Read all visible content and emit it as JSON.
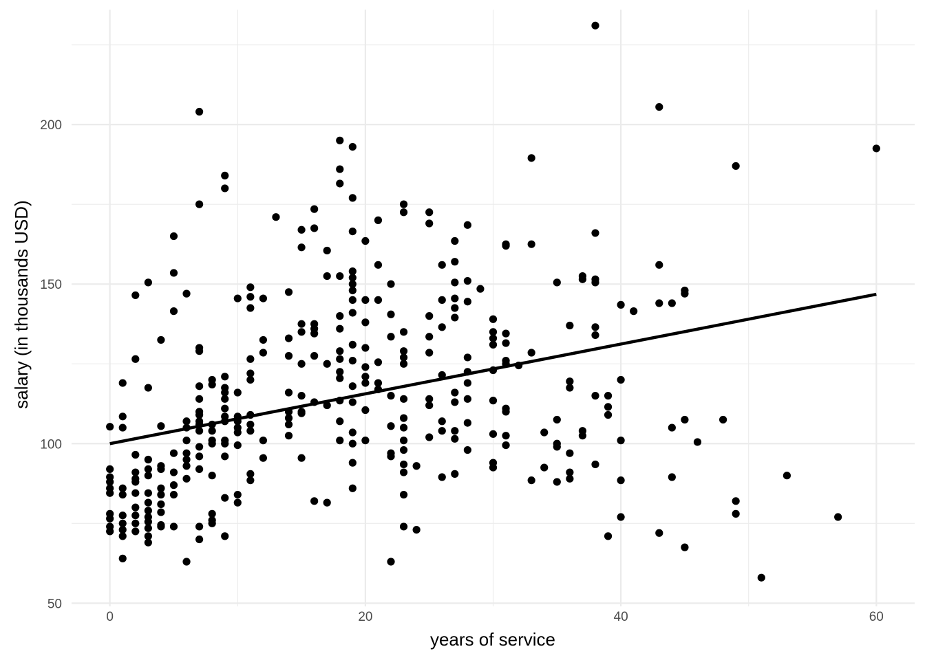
{
  "chart_data": {
    "type": "scatter",
    "title": "",
    "xlabel": "years of service",
    "ylabel": "salary (in thousands USD)",
    "xlim": [
      -3,
      63
    ],
    "ylim": [
      49,
      236
    ],
    "x_ticks": [
      0,
      20,
      40,
      60
    ],
    "x_tick_labels": [
      "0",
      "20",
      "40",
      "60"
    ],
    "y_ticks": [
      50,
      100,
      150,
      200
    ],
    "y_tick_labels": [
      "50",
      "100",
      "150",
      "200"
    ],
    "grid": true,
    "legend": "none",
    "point_color": "#000000",
    "trend_line": {
      "x": [
        0,
        60
      ],
      "y": [
        100,
        146.8
      ]
    },
    "points": [
      [
        0,
        105.3
      ],
      [
        0,
        92
      ],
      [
        0,
        89.5
      ],
      [
        0,
        88
      ],
      [
        0,
        86
      ],
      [
        0,
        84.5
      ],
      [
        0,
        78
      ],
      [
        0,
        76.5
      ],
      [
        0,
        74
      ],
      [
        0,
        72.5
      ],
      [
        1,
        119
      ],
      [
        1,
        108.5
      ],
      [
        1,
        105
      ],
      [
        1,
        86
      ],
      [
        1,
        84
      ],
      [
        1,
        77.5
      ],
      [
        1,
        75
      ],
      [
        1,
        73
      ],
      [
        1,
        71
      ],
      [
        1,
        64
      ],
      [
        2,
        146.5
      ],
      [
        2,
        126.5
      ],
      [
        2,
        96.5
      ],
      [
        2,
        91
      ],
      [
        2,
        89
      ],
      [
        2,
        88
      ],
      [
        2,
        84.5
      ],
      [
        2,
        80
      ],
      [
        2,
        77.5
      ],
      [
        2,
        75
      ],
      [
        2,
        72.5
      ],
      [
        3,
        150.5
      ],
      [
        3,
        117.5
      ],
      [
        3,
        95
      ],
      [
        3,
        92
      ],
      [
        3,
        90
      ],
      [
        3,
        84.5
      ],
      [
        3,
        81.5
      ],
      [
        3,
        79
      ],
      [
        3,
        77
      ],
      [
        3,
        75.5
      ],
      [
        3,
        73.5
      ],
      [
        3,
        71
      ],
      [
        3,
        69
      ],
      [
        4,
        132.5
      ],
      [
        4,
        105.5
      ],
      [
        4,
        93
      ],
      [
        4,
        92
      ],
      [
        4,
        86
      ],
      [
        4,
        84
      ],
      [
        4,
        81
      ],
      [
        4,
        78.5
      ],
      [
        4,
        74.5
      ],
      [
        4,
        74
      ],
      [
        5,
        165
      ],
      [
        5,
        153.5
      ],
      [
        5,
        141.5
      ],
      [
        5,
        97
      ],
      [
        5,
        91
      ],
      [
        5,
        87
      ],
      [
        5,
        84
      ],
      [
        5,
        74
      ],
      [
        6,
        147
      ],
      [
        6,
        107
      ],
      [
        6,
        105
      ],
      [
        6,
        101
      ],
      [
        6,
        97
      ],
      [
        6,
        95
      ],
      [
        6,
        93
      ],
      [
        6,
        89
      ],
      [
        6,
        63
      ],
      [
        7,
        204
      ],
      [
        7,
        175
      ],
      [
        7,
        130
      ],
      [
        7,
        129
      ],
      [
        7,
        118
      ],
      [
        7,
        114
      ],
      [
        7,
        110
      ],
      [
        7,
        109
      ],
      [
        7,
        107
      ],
      [
        7,
        106
      ],
      [
        7,
        104
      ],
      [
        7,
        99
      ],
      [
        7,
        96
      ],
      [
        7,
        92
      ],
      [
        7,
        74
      ],
      [
        7,
        70
      ],
      [
        8,
        120
      ],
      [
        8,
        118.5
      ],
      [
        8,
        106
      ],
      [
        8,
        104
      ],
      [
        8,
        101
      ],
      [
        8,
        100
      ],
      [
        8,
        90
      ],
      [
        8,
        78
      ],
      [
        8,
        76
      ],
      [
        8,
        75
      ],
      [
        9,
        184
      ],
      [
        9,
        180
      ],
      [
        9,
        121
      ],
      [
        9,
        117.5
      ],
      [
        9,
        116
      ],
      [
        9,
        114
      ],
      [
        9,
        111
      ],
      [
        9,
        108.5
      ],
      [
        9,
        107
      ],
      [
        9,
        101
      ],
      [
        9,
        100
      ],
      [
        9,
        96
      ],
      [
        9,
        83
      ],
      [
        9,
        71
      ],
      [
        10,
        145.5
      ],
      [
        10,
        116
      ],
      [
        10,
        108.5
      ],
      [
        10,
        107
      ],
      [
        10,
        105
      ],
      [
        10,
        103.5
      ],
      [
        10,
        99.5
      ],
      [
        10,
        84
      ],
      [
        10,
        81.5
      ],
      [
        11,
        149
      ],
      [
        11,
        146
      ],
      [
        11,
        142.5
      ],
      [
        11,
        126.5
      ],
      [
        11,
        122
      ],
      [
        11,
        120
      ],
      [
        11,
        109
      ],
      [
        11,
        106
      ],
      [
        11,
        104
      ],
      [
        11,
        90.5
      ],
      [
        11,
        88.5
      ],
      [
        12,
        145.5
      ],
      [
        12,
        132.5
      ],
      [
        12,
        128.5
      ],
      [
        12,
        101
      ],
      [
        12,
        95.5
      ],
      [
        13,
        171
      ],
      [
        14,
        147.5
      ],
      [
        14,
        133
      ],
      [
        14,
        127.5
      ],
      [
        14,
        116
      ],
      [
        14,
        110
      ],
      [
        14,
        108
      ],
      [
        14,
        106
      ],
      [
        14,
        102.5
      ],
      [
        15,
        167
      ],
      [
        15,
        161.5
      ],
      [
        15,
        137.5
      ],
      [
        15,
        135
      ],
      [
        15,
        125
      ],
      [
        15,
        115
      ],
      [
        15,
        110
      ],
      [
        15,
        109.5
      ],
      [
        15,
        95.5
      ],
      [
        16,
        173.5
      ],
      [
        16,
        167.5
      ],
      [
        16,
        137.5
      ],
      [
        16,
        136
      ],
      [
        16,
        134.5
      ],
      [
        16,
        127.5
      ],
      [
        16,
        113
      ],
      [
        16,
        82
      ],
      [
        17,
        160.5
      ],
      [
        17,
        152.5
      ],
      [
        17,
        125
      ],
      [
        17,
        112
      ],
      [
        17,
        81.5
      ],
      [
        18,
        195
      ],
      [
        18,
        186
      ],
      [
        18,
        181.5
      ],
      [
        18,
        152.5
      ],
      [
        18,
        140
      ],
      [
        18,
        136
      ],
      [
        18,
        129
      ],
      [
        18,
        126.5
      ],
      [
        18,
        122.5
      ],
      [
        18,
        120.5
      ],
      [
        18,
        113.5
      ],
      [
        18,
        107
      ],
      [
        18,
        101
      ],
      [
        19,
        193
      ],
      [
        19,
        177
      ],
      [
        19,
        166.5
      ],
      [
        19,
        154
      ],
      [
        19,
        152
      ],
      [
        19,
        150
      ],
      [
        19,
        148
      ],
      [
        19,
        145
      ],
      [
        19,
        141
      ],
      [
        19,
        131
      ],
      [
        19,
        126
      ],
      [
        19,
        118
      ],
      [
        19,
        113
      ],
      [
        19,
        103.5
      ],
      [
        19,
        100
      ],
      [
        19,
        94
      ],
      [
        19,
        86
      ],
      [
        20,
        163.5
      ],
      [
        20,
        145
      ],
      [
        20,
        138
      ],
      [
        20,
        130
      ],
      [
        20,
        124
      ],
      [
        20,
        121
      ],
      [
        20,
        119
      ],
      [
        20,
        110.5
      ],
      [
        20,
        101
      ],
      [
        21,
        170
      ],
      [
        21,
        156
      ],
      [
        21,
        145
      ],
      [
        21,
        125.5
      ],
      [
        21,
        119
      ],
      [
        21,
        117
      ],
      [
        22,
        150
      ],
      [
        22,
        140.5
      ],
      [
        22,
        133.5
      ],
      [
        22,
        115
      ],
      [
        22,
        105.5
      ],
      [
        22,
        97
      ],
      [
        22,
        96
      ],
      [
        22,
        63
      ],
      [
        23,
        175
      ],
      [
        23,
        172.5
      ],
      [
        23,
        135
      ],
      [
        23,
        129
      ],
      [
        23,
        127
      ],
      [
        23,
        125
      ],
      [
        23,
        114
      ],
      [
        23,
        108
      ],
      [
        23,
        105
      ],
      [
        23,
        101
      ],
      [
        23,
        98
      ],
      [
        23,
        93.5
      ],
      [
        23,
        91
      ],
      [
        23,
        84
      ],
      [
        23,
        74
      ],
      [
        24,
        93
      ],
      [
        24,
        73
      ],
      [
        25,
        172.5
      ],
      [
        25,
        169
      ],
      [
        25,
        140
      ],
      [
        25,
        133.5
      ],
      [
        25,
        128.5
      ],
      [
        25,
        114
      ],
      [
        25,
        112
      ],
      [
        25,
        102
      ],
      [
        26,
        156
      ],
      [
        26,
        145
      ],
      [
        26,
        136.5
      ],
      [
        26,
        121.5
      ],
      [
        26,
        107
      ],
      [
        26,
        104
      ],
      [
        26,
        89.5
      ],
      [
        27,
        163.5
      ],
      [
        27,
        157
      ],
      [
        27,
        150.5
      ],
      [
        27,
        145.5
      ],
      [
        27,
        142.5
      ],
      [
        27,
        139.5
      ],
      [
        27,
        116
      ],
      [
        27,
        113
      ],
      [
        27,
        104
      ],
      [
        27,
        101.5
      ],
      [
        27,
        90.5
      ],
      [
        28,
        168.5
      ],
      [
        28,
        151
      ],
      [
        28,
        144.5
      ],
      [
        28,
        127
      ],
      [
        28,
        122.5
      ],
      [
        28,
        119
      ],
      [
        28,
        114
      ],
      [
        28,
        106.5
      ],
      [
        28,
        98
      ],
      [
        29,
        148.5
      ],
      [
        30,
        139
      ],
      [
        30,
        135
      ],
      [
        30,
        133
      ],
      [
        30,
        131
      ],
      [
        30,
        123
      ],
      [
        30,
        113.5
      ],
      [
        30,
        103
      ],
      [
        30,
        94
      ],
      [
        30,
        92.5
      ],
      [
        31,
        162.5
      ],
      [
        31,
        162
      ],
      [
        31,
        134.5
      ],
      [
        31,
        131.5
      ],
      [
        31,
        126
      ],
      [
        31,
        125
      ],
      [
        31,
        111
      ],
      [
        31,
        110
      ],
      [
        31,
        102.5
      ],
      [
        31,
        99.5
      ],
      [
        32,
        124.5
      ],
      [
        33,
        189.5
      ],
      [
        33,
        162.5
      ],
      [
        33,
        128.5
      ],
      [
        33,
        88.5
      ],
      [
        34,
        103.5
      ],
      [
        34,
        92.5
      ],
      [
        35,
        150.5
      ],
      [
        35,
        107.5
      ],
      [
        35,
        100
      ],
      [
        35,
        99
      ],
      [
        35,
        88
      ],
      [
        36,
        137
      ],
      [
        36,
        119.5
      ],
      [
        36,
        117.5
      ],
      [
        36,
        97
      ],
      [
        36,
        91
      ],
      [
        36,
        89
      ],
      [
        37,
        152.5
      ],
      [
        37,
        151.5
      ],
      [
        37,
        104
      ],
      [
        37,
        102.5
      ],
      [
        38,
        231
      ],
      [
        38,
        166
      ],
      [
        38,
        151.5
      ],
      [
        38,
        150.5
      ],
      [
        38,
        136.5
      ],
      [
        38,
        134
      ],
      [
        38,
        115
      ],
      [
        38,
        93.5
      ],
      [
        39,
        115
      ],
      [
        39,
        111.5
      ],
      [
        39,
        109
      ],
      [
        39,
        71
      ],
      [
        40,
        143.5
      ],
      [
        40,
        120
      ],
      [
        40,
        101
      ],
      [
        40,
        88.5
      ],
      [
        40,
        77
      ],
      [
        41,
        141.5
      ],
      [
        43,
        205.5
      ],
      [
        43,
        156
      ],
      [
        43,
        144
      ],
      [
        43,
        72
      ],
      [
        44,
        144
      ],
      [
        44,
        105
      ],
      [
        44,
        89.5
      ],
      [
        45,
        148
      ],
      [
        45,
        147
      ],
      [
        45,
        107.5
      ],
      [
        45,
        67.5
      ],
      [
        46,
        100.5
      ],
      [
        48,
        107.5
      ],
      [
        49,
        187
      ],
      [
        49,
        82
      ],
      [
        49,
        78
      ],
      [
        51,
        58
      ],
      [
        53,
        90
      ],
      [
        57,
        77
      ],
      [
        60,
        192.5
      ]
    ]
  }
}
